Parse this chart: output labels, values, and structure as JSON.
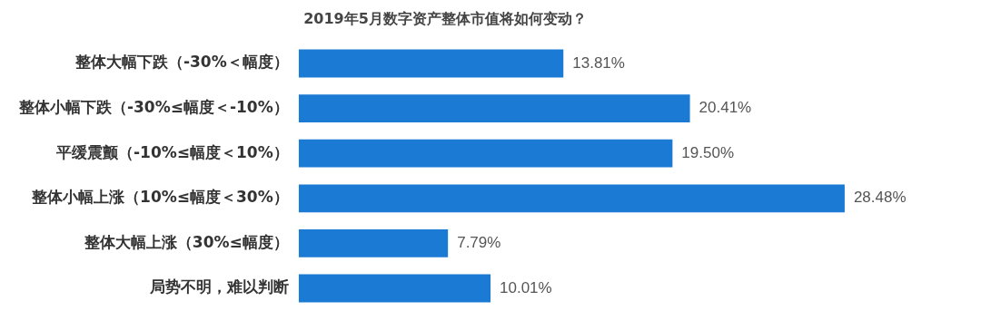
{
  "chart_data": {
    "type": "bar",
    "orientation": "horizontal",
    "title": "2019年5月数字资产整体市值将如何变动？",
    "categories": [
      "整体大幅下跌（-30%＜幅度）",
      "整体小幅下跌（-30%≤幅度＜-10%）",
      "平缓震颤（-10%≤幅度＜10%）",
      "整体小幅上涨（10%≤幅度＜30%）",
      "整体大幅上涨（30%≤幅度）",
      "局势不明，难以判断"
    ],
    "values": [
      13.81,
      20.41,
      19.5,
      28.48,
      7.79,
      10.01
    ],
    "value_labels": [
      "13.81%",
      "20.41%",
      "19.50%",
      "28.48%",
      "7.79%",
      "10.01%"
    ],
    "color": "#1b7ad3",
    "legend": false,
    "tick_labels": "y"
  }
}
